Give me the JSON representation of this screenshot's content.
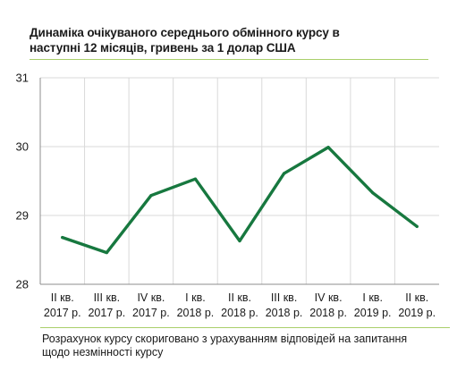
{
  "title_line1": "Динаміка очікуваного середнього обмінного курсу в",
  "title_line2": "наступні 12 місяців, гривень за 1 долар США",
  "footnote_line1": "Розрахунок курсу скориговано з урахуванням відповідей на запитання",
  "footnote_line2": "щодо незмінності курсу",
  "colors": {
    "line": "#17783f",
    "grid": "#d9d9d9",
    "accent_rule": "#a9cf6a"
  },
  "chart_data": {
    "type": "line",
    "title": "Динаміка очікуваного середнього обмінного курсу в наступні 12 місяців, гривень за 1 долар США",
    "categories": [
      [
        "II кв.",
        "2017 р."
      ],
      [
        "III кв.",
        "2017 р."
      ],
      [
        "IV кв.",
        "2017 р."
      ],
      [
        "I кв.",
        "2018 р."
      ],
      [
        "II кв.",
        "2018 р."
      ],
      [
        "III кв.",
        "2018 р."
      ],
      [
        "IV кв.",
        "2018 р."
      ],
      [
        "I кв.",
        "2019 р."
      ],
      [
        "II кв.",
        "2019 р."
      ]
    ],
    "series": [
      {
        "values": [
          28.68,
          28.46,
          29.29,
          29.53,
          28.63,
          29.61,
          29.99,
          29.33,
          28.84
        ]
      }
    ],
    "ylim": [
      28,
      31
    ],
    "yticks": [
      28,
      29,
      30,
      31
    ],
    "xlabel": "",
    "ylabel": "",
    "grid": true,
    "legend": "none"
  }
}
